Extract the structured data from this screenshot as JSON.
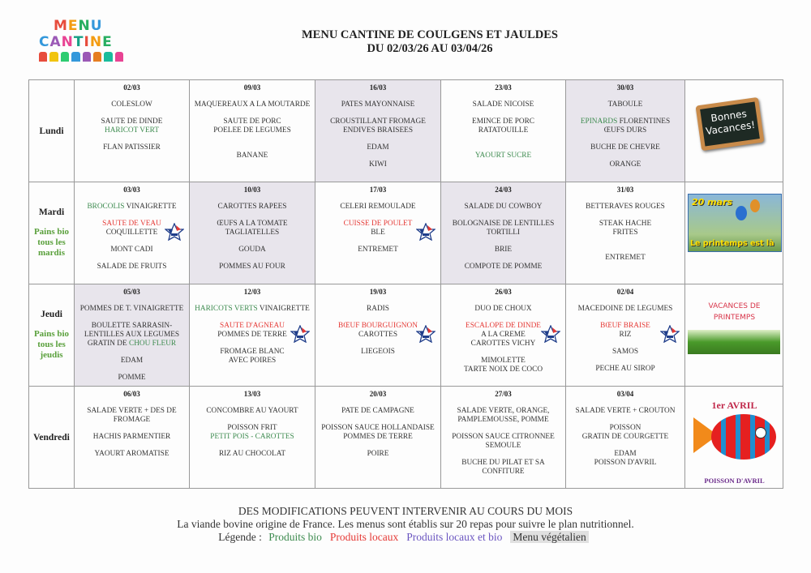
{
  "logo": {
    "line1": "MENU",
    "line2": "CANTINE"
  },
  "header": {
    "title": "MENU CANTINE DE COULGENS ET JAULDES",
    "subtitle": "DU 02/03/26 AU 03/04/26"
  },
  "colors": {
    "bio": "#3d8b4f",
    "local": "#e53935",
    "local_bio": "#6a55c0",
    "vegetarian_bg": "#e0e0e0",
    "shade": "#e8e5ec"
  },
  "rows": [
    {
      "day": "Lundi",
      "note": "",
      "cells": [
        {
          "date": "02/03",
          "shade": false,
          "groups": [
            [
              "COLESLOW"
            ],
            [
              "SAUTE DE DINDE",
              [
                {
                  "t": "HARICOT VERT",
                  "k": "bio"
                }
              ]
            ],
            [
              "FLAN PATISSIER"
            ]
          ]
        },
        {
          "date": "09/03",
          "shade": false,
          "groups": [
            [
              "MAQUEREAUX A LA MOUTARDE"
            ],
            [
              "SAUTE DE PORC",
              "POELEE DE LEGUMES"
            ],
            [
              ""
            ],
            [
              "BANANE"
            ]
          ]
        },
        {
          "date": "16/03",
          "shade": true,
          "groups": [
            [
              "PATES MAYONNAISE"
            ],
            [
              "CROUSTILLANT FROMAGE",
              "ENDIVES BRAISEES"
            ],
            [
              "EDAM"
            ],
            [
              "KIWI"
            ]
          ]
        },
        {
          "date": "23/03",
          "shade": false,
          "groups": [
            [
              "SALADE NICOISE"
            ],
            [
              "EMINCE DE PORC",
              "RATATOUILLE"
            ],
            [
              ""
            ],
            [
              [
                {
                  "t": "YAOURT SUCRE",
                  "k": "bio"
                }
              ]
            ]
          ]
        },
        {
          "date": "30/03",
          "shade": true,
          "groups": [
            [
              "TABOULE"
            ],
            [
              [
                {
                  "t": "EPINARDS",
                  "k": "bio"
                },
                {
                  "t": " FLORENTINES"
                }
              ],
              "ŒUFS DURS"
            ],
            [
              "BUCHE DE CHEVRE"
            ],
            [
              "ORANGE"
            ]
          ]
        }
      ],
      "picture": {
        "type": "chalkboard",
        "text1": "Bonnes",
        "text2": "Vacances!"
      }
    },
    {
      "day": "Mardi",
      "note": "Pains bio tous les mardis",
      "cells": [
        {
          "date": "03/03",
          "shade": false,
          "groups": [
            [
              [
                {
                  "t": "BROCOLIS",
                  "k": "bio"
                },
                {
                  "t": " VINAIGRETTE"
                }
              ]
            ],
            [
              [
                {
                  "t": "SAUTE DE VEAU",
                  "k": "local"
                }
              ],
              "COQUILLETTE"
            ],
            [
              "MONT CADI"
            ],
            [
              "SALADE DE FRUITS"
            ]
          ],
          "star": true
        },
        {
          "date": "10/03",
          "shade": true,
          "groups": [
            [
              "CAROTTES RAPEES"
            ],
            [
              "ŒUFS A LA TOMATE",
              "TAGLIATELLES"
            ],
            [
              "GOUDA"
            ],
            [
              "POMMES AU FOUR"
            ]
          ]
        },
        {
          "date": "17/03",
          "shade": false,
          "groups": [
            [
              "CELERI REMOULADE"
            ],
            [
              [
                {
                  "t": "CUISSE DE POULET",
                  "k": "local"
                }
              ],
              "BLE"
            ],
            [
              "ENTREMET"
            ]
          ],
          "star": true
        },
        {
          "date": "24/03",
          "shade": true,
          "groups": [
            [
              "SALADE DU COWBOY"
            ],
            [
              "BOLOGNAISE DE LENTILLES",
              "TORTILLI"
            ],
            [
              "BRIE"
            ],
            [
              "COMPOTE DE POMME"
            ]
          ]
        },
        {
          "date": "31/03",
          "shade": false,
          "groups": [
            [
              "BETTERAVES ROUGES"
            ],
            [
              "STEAK HACHE",
              "FRITES"
            ],
            [
              ""
            ],
            [
              "ENTREMET"
            ]
          ]
        }
      ],
      "picture": {
        "type": "spring",
        "text1": "20 mars",
        "text2": "Le printemps est là"
      }
    },
    {
      "day": "Jeudi",
      "note": "Pains bio tous les jeudis",
      "cells": [
        {
          "date": "05/03",
          "shade": true,
          "groups": [
            [
              "POMMES DE T. VINAIGRETTE"
            ],
            [
              "BOULETTE SARRASIN-",
              "LENTILLES AUX LEGUMES",
              [
                {
                  "t": "GRATIN DE "
                },
                {
                  "t": "CHOU FLEUR",
                  "k": "bio"
                }
              ]
            ],
            [
              "EDAM"
            ],
            [
              "POMME"
            ]
          ]
        },
        {
          "date": "12/03",
          "shade": false,
          "groups": [
            [
              [
                {
                  "t": "HARICOTS VERTS",
                  "k": "bio"
                },
                {
                  "t": " VINAIGRETTE"
                }
              ]
            ],
            [
              [
                {
                  "t": "SAUTE D'AGNEAU",
                  "k": "local"
                }
              ],
              "POMMES DE TERRE"
            ],
            [
              "FROMAGE BLANC",
              "AVEC POIRES"
            ]
          ],
          "star": true
        },
        {
          "date": "19/03",
          "shade": false,
          "groups": [
            [
              "RADIS"
            ],
            [
              [
                {
                  "t": "BŒUF BOURGUIGNON",
                  "k": "local"
                }
              ],
              "CAROTTES"
            ],
            [
              "LIEGEOIS"
            ]
          ],
          "star": true
        },
        {
          "date": "26/03",
          "shade": false,
          "groups": [
            [
              "DUO DE CHOUX"
            ],
            [
              [
                {
                  "t": "ESCALOPE DE DINDE",
                  "k": "local"
                }
              ],
              "A LA CREME",
              "CAROTTES VICHY"
            ],
            [
              "MIMOLETTE",
              "TARTE NOIX DE COCO"
            ]
          ],
          "star": true
        },
        {
          "date": "02/04",
          "shade": false,
          "groups": [
            [
              "MACEDOINE DE LEGUMES"
            ],
            [
              [
                {
                  "t": "BŒUF BRAISE",
                  "k": "local"
                }
              ],
              "RIZ"
            ],
            [
              "SAMOS"
            ],
            [
              "PECHE AU SIROP"
            ]
          ],
          "star": true
        }
      ],
      "picture": {
        "type": "grass",
        "text1": "VACANCES DE",
        "text2": "PRINTEMPS"
      }
    },
    {
      "day": "Vendredi",
      "note": "",
      "cells": [
        {
          "date": "06/03",
          "shade": false,
          "groups": [
            [
              "SALADE VERTE + DES DE",
              "FROMAGE"
            ],
            [
              "HACHIS PARMENTIER"
            ],
            [
              "YAOURT AROMATISE"
            ]
          ]
        },
        {
          "date": "13/03",
          "shade": false,
          "groups": [
            [
              "CONCOMBRE AU YAOURT"
            ],
            [
              "POISSON FRIT",
              [
                {
                  "t": "PETIT POIS - CAROTTES",
                  "k": "bio"
                }
              ]
            ],
            [
              "RIZ AU CHOCOLAT"
            ]
          ]
        },
        {
          "date": "20/03",
          "shade": false,
          "groups": [
            [
              "PATE DE CAMPAGNE"
            ],
            [
              "POISSON SAUCE HOLLANDAISE",
              "POMMES DE TERRE"
            ],
            [
              "POIRE"
            ]
          ]
        },
        {
          "date": "27/03",
          "shade": false,
          "groups": [
            [
              "SALADE VERTE, ORANGE,",
              "PAMPLEMOUSSE, POMME"
            ],
            [
              "POISSON SAUCE CITRONNEE",
              "SEMOULE"
            ],
            [
              "BUCHE DU PILAT ET SA",
              "CONFITURE"
            ]
          ]
        },
        {
          "date": "03/04",
          "shade": false,
          "groups": [
            [
              "SALADE VERTE + CROUTON"
            ],
            [
              "POISSON",
              "GRATIN DE COURGETTE"
            ],
            [
              "EDAM",
              "POISSON D'AVRIL"
            ]
          ]
        }
      ],
      "picture": {
        "type": "fish",
        "text1": "1er AVRIL",
        "text2": "POISSON D'AVRIL"
      }
    }
  ],
  "footer": {
    "line1": "DES MODIFICATIONS PEUVENT INTERVENIR AU COURS DU MOIS",
    "line2": "La viande bovine origine de France. Les menus sont établis sur 20 repas pour suivre le plan nutritionnel.",
    "legend_label": "Légende : ",
    "legend": [
      {
        "t": "Produits bio",
        "k": "bio"
      },
      {
        "t": "Produits locaux",
        "k": "local"
      },
      {
        "t": "Produits locaux et bio",
        "k": "localbio"
      },
      {
        "t": "Menu végétalien",
        "k": "veg"
      }
    ]
  }
}
